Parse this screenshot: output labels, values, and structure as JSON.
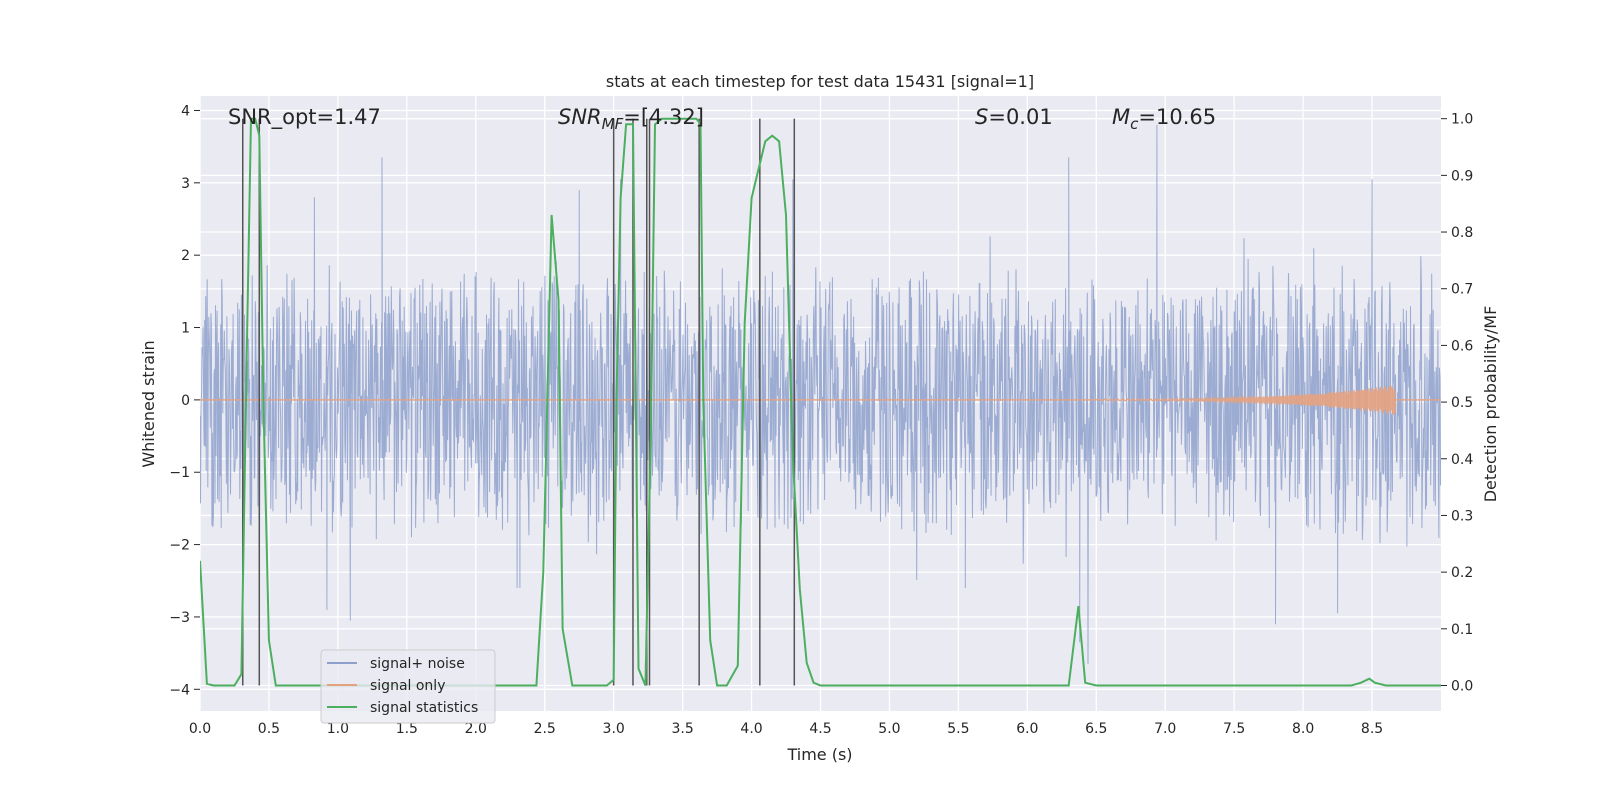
{
  "chart_data": {
    "type": "line",
    "title": "stats at each timestep for test data 15431 [signal=1]",
    "xlabel": "Time (s)",
    "ylabel": "Whitened strain",
    "y2label": "Detection probability/MF",
    "xlim": [
      0.0,
      9.0
    ],
    "ylim": [
      -4.3,
      4.2
    ],
    "y2lim": [
      -0.045,
      1.04
    ],
    "xticks": [
      "0.0",
      "0.5",
      "1.0",
      "1.5",
      "2.0",
      "2.5",
      "3.0",
      "3.5",
      "4.0",
      "4.5",
      "5.0",
      "5.5",
      "6.0",
      "6.5",
      "7.0",
      "7.5",
      "8.0",
      "8.5"
    ],
    "yticks": [
      "4",
      "3",
      "2",
      "1",
      "0",
      "−1",
      "−2",
      "−3",
      "−4"
    ],
    "y2ticks": [
      "1.0",
      "0.9",
      "0.8",
      "0.7",
      "0.6",
      "0.5",
      "0.4",
      "0.3",
      "0.2",
      "0.1",
      "0.0"
    ],
    "grid": true,
    "legend_position": "lower-left",
    "annotations": {
      "snr_opt": "SNR_opt=1.47",
      "snr_mf_main": "SNR",
      "snr_mf_sub": "MF",
      "snr_mf_val": "=[4.32]",
      "s_sym": "S",
      "s_val": "=0.01",
      "mc_sym": "M",
      "mc_sub": "c",
      "mc_val": "=10.65"
    },
    "series": [
      {
        "name": "signal+ noise",
        "color": "#8da0cb",
        "axis": "left",
        "duration": 9.0,
        "envelope_typical": 2.0,
        "peak_values": [
          {
            "x": 0.83,
            "y": 2.8
          },
          {
            "x": 1.32,
            "y": 3.35
          },
          {
            "x": 2.75,
            "y": 2.9
          },
          {
            "x": 3.0,
            "y": 2.6
          },
          {
            "x": 3.05,
            "y": 3.05
          },
          {
            "x": 4.3,
            "y": 3.05
          },
          {
            "x": 6.3,
            "y": 3.35
          },
          {
            "x": 6.94,
            "y": 3.8
          },
          {
            "x": 8.5,
            "y": 3.05
          },
          {
            "x": 0.92,
            "y": -2.9
          },
          {
            "x": 1.09,
            "y": -3.05
          },
          {
            "x": 2.3,
            "y": -2.6
          },
          {
            "x": 2.32,
            "y": -2.6
          },
          {
            "x": 5.55,
            "y": -2.6
          },
          {
            "x": 6.38,
            "y": -3.35
          },
          {
            "x": 6.44,
            "y": -3.65
          },
          {
            "x": 7.8,
            "y": -3.1
          },
          {
            "x": 8.25,
            "y": -2.95
          }
        ]
      },
      {
        "name": "signal only",
        "color": "#e5a27f",
        "axis": "left",
        "start": 6.5,
        "end": 8.67,
        "max_amplitude": 0.2
      },
      {
        "name": "signal statistics",
        "color": "#4caf5f",
        "axis": "right",
        "x": [
          0.0,
          0.05,
          0.1,
          0.25,
          0.3,
          0.34,
          0.37,
          0.4,
          0.43,
          0.46,
          0.5,
          0.55,
          0.6,
          0.9,
          1.2,
          1.5,
          1.8,
          2.1,
          2.44,
          2.49,
          2.55,
          2.6,
          2.63,
          2.7,
          2.78,
          2.95,
          3.0,
          3.02,
          3.05,
          3.09,
          3.14,
          3.18,
          3.23,
          3.27,
          3.3,
          3.35,
          3.45,
          3.6,
          3.63,
          3.65,
          3.7,
          3.75,
          3.82,
          3.9,
          3.95,
          4.0,
          4.05,
          4.1,
          4.15,
          4.2,
          4.25,
          4.3,
          4.35,
          4.4,
          4.45,
          4.5,
          4.55,
          4.6,
          4.9,
          5.5,
          6.0,
          6.3,
          6.37,
          6.42,
          6.5,
          7.0,
          7.5,
          8.0,
          8.35,
          8.42,
          8.48,
          8.52,
          8.6,
          8.9,
          9.0
        ],
        "y": [
          0.22,
          0.003,
          0.0,
          0.0,
          0.02,
          0.6,
          1.0,
          1.0,
          0.97,
          0.5,
          0.08,
          0.0,
          0.0,
          0.0,
          0.0,
          0.0,
          0.0,
          0.0,
          0.0,
          0.2,
          0.83,
          0.68,
          0.1,
          0.0,
          0.0,
          0.0,
          0.01,
          0.5,
          0.86,
          0.99,
          0.99,
          0.03,
          0.0,
          0.45,
          0.99,
          1.0,
          1.0,
          1.0,
          0.99,
          0.5,
          0.08,
          0.0,
          0.0,
          0.035,
          0.64,
          0.86,
          0.91,
          0.96,
          0.97,
          0.96,
          0.83,
          0.4,
          0.17,
          0.04,
          0.005,
          0.0,
          0.0,
          0.0,
          0.0,
          0.0,
          0.0,
          0.0,
          0.14,
          0.005,
          0.0,
          0.0,
          0.0,
          0.0,
          0.0,
          0.005,
          0.012,
          0.005,
          0.0,
          0.0,
          0.0
        ]
      }
    ],
    "marker_lines_x": [
      0.31,
      0.43,
      3.0,
      3.14,
      3.24,
      3.26,
      3.62,
      4.06,
      4.31
    ]
  }
}
